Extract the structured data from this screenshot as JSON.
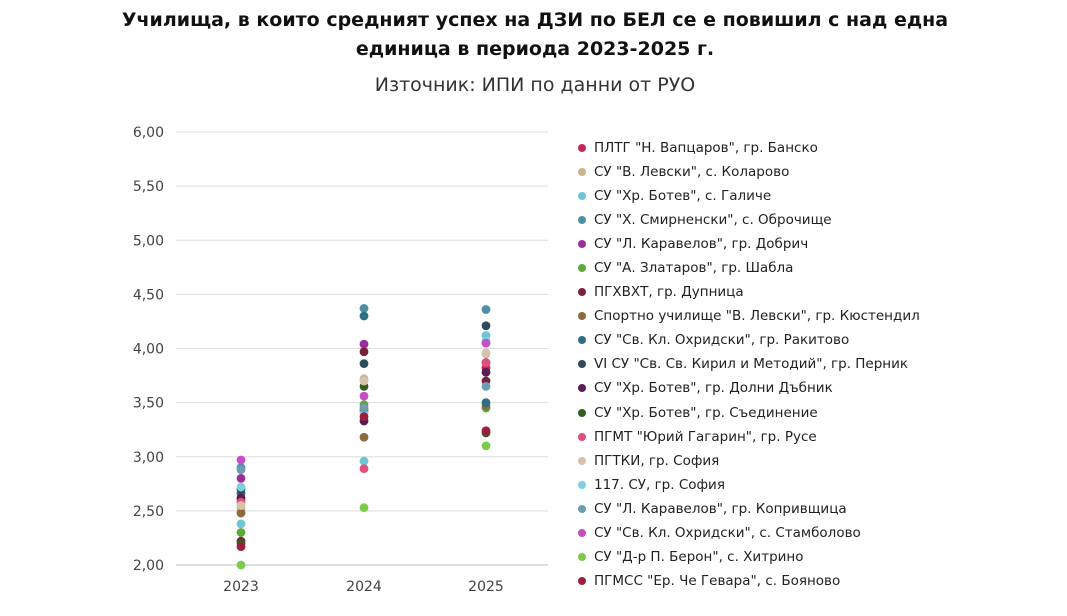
{
  "chart_data": {
    "type": "scatter",
    "title": "Училища, в които средният успех на ДЗИ по БЕЛ се е повишил с над една единица в периода 2023-2025 г.",
    "subtitle": "Източник: ИПИ по данни от РУО",
    "categories": [
      "2023",
      "2024",
      "2025"
    ],
    "ylim": [
      2.0,
      6.0
    ],
    "yticks": [
      "2,00",
      "2,50",
      "3,00",
      "3,50",
      "4,00",
      "4,50",
      "5,00",
      "5,50",
      "6,00"
    ],
    "grid": true,
    "legend_position": "right",
    "series": [
      {
        "name": "ПЛТГ \"Н. Вапцаров\", гр. Банско",
        "color": "#C8245A",
        "values": [
          2.6,
          3.43,
          3.82
        ]
      },
      {
        "name": "СУ \"В. Левски\", с. Коларово",
        "color": "#C9B48E",
        "values": [
          2.52,
          3.72,
          3.95
        ]
      },
      {
        "name": "СУ \"Хр. Ботев\", с. Галиче",
        "color": "#6CC6D6",
        "values": [
          2.38,
          2.96,
          4.12
        ]
      },
      {
        "name": "СУ \"Х. Смирненски\", с. Оброчище",
        "color": "#4D8FA3",
        "values": [
          2.9,
          4.37,
          4.36
        ]
      },
      {
        "name": "СУ \"Л. Каравелов\", гр. Добрич",
        "color": "#9B2E9B",
        "values": [
          2.8,
          4.04,
          3.87
        ]
      },
      {
        "name": "СУ \"А. Златаров\", гр. Шабла",
        "color": "#5FA83C",
        "values": [
          2.3,
          3.48,
          3.45
        ]
      },
      {
        "name": "ПГХВХТ, гр. Дупница",
        "color": "#7B1F3A",
        "values": [
          2.22,
          3.97,
          3.7
        ]
      },
      {
        "name": "Спортно училище \"В. Левски\", гр. Кюстендил",
        "color": "#8C6A3E",
        "values": [
          2.48,
          3.18,
          3.47
        ]
      },
      {
        "name": "СУ \"Св. Кл. Охридски\", гр. Ракитово",
        "color": "#2E6E83",
        "values": [
          2.66,
          4.3,
          3.5
        ]
      },
      {
        "name": "VI СУ \"Св. Св. Кирил и Методий\", гр. Перник",
        "color": "#2D4A5A",
        "values": [
          2.7,
          3.86,
          4.21
        ]
      },
      {
        "name": "СУ \"Хр. Ботев\", гр. Долни Дъбник",
        "color": "#5A1E55",
        "values": [
          2.62,
          3.33,
          3.78
        ]
      },
      {
        "name": "СУ \"Хр. Ботев\", гр. Съединение",
        "color": "#2F5E1F",
        "values": [
          2.2,
          3.65,
          3.22
        ]
      },
      {
        "name": "ПГМТ \"Юрий Гагарин\", гр. Русе",
        "color": "#E0507A",
        "values": [
          2.58,
          2.89,
          3.87
        ]
      },
      {
        "name": "ПГТКИ, гр. София",
        "color": "#D6C3AC",
        "values": [
          2.55,
          3.7,
          3.96
        ]
      },
      {
        "name": "117. СУ, гр. София",
        "color": "#7ECFE0",
        "values": [
          2.72,
          3.4,
          4.07
        ]
      },
      {
        "name": "СУ \"Л. Каравелов\", гр. Копривщица",
        "color": "#6B9DB3",
        "values": [
          2.88,
          3.45,
          3.65
        ]
      },
      {
        "name": "СУ \"Св. Кл. Охридски\", с. Стамболово",
        "color": "#C64FC8",
        "values": [
          2.97,
          3.56,
          4.05
        ]
      },
      {
        "name": "СУ \"Д-р П. Берон\", с. Хитрино",
        "color": "#7CCB4A",
        "values": [
          2.0,
          2.53,
          3.1
        ]
      },
      {
        "name": "ПГМСС \"Ер. Че Гевара\", с. Бояново",
        "color": "#9C1F3E",
        "values": [
          2.17,
          3.37,
          3.24
        ]
      }
    ]
  }
}
